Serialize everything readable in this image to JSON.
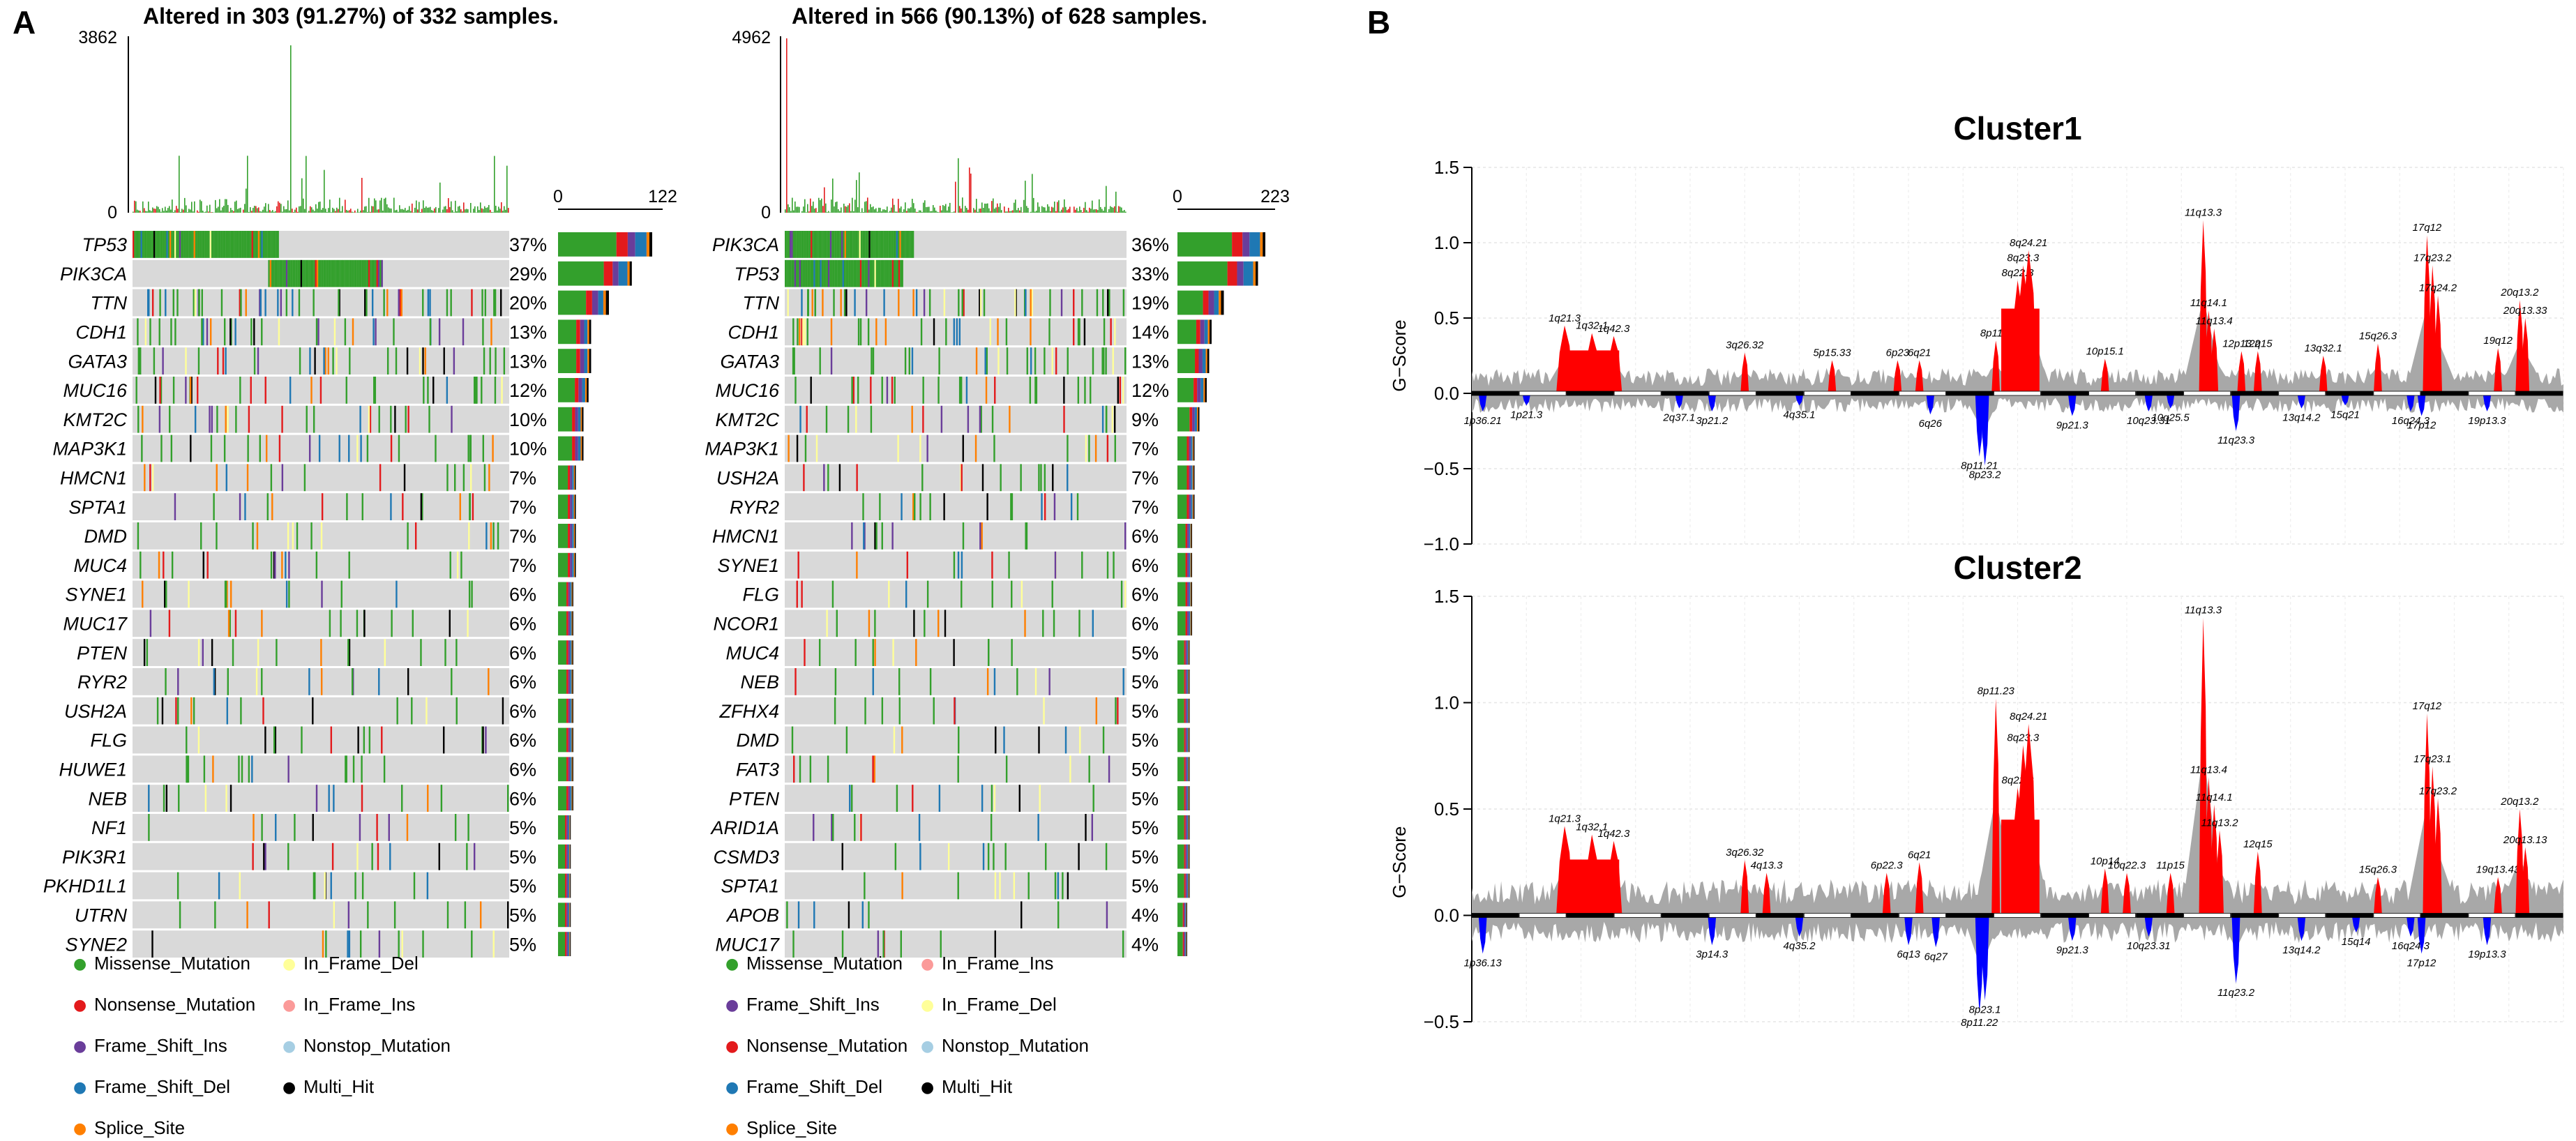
{
  "panels": {
    "a": "A",
    "b": "B"
  },
  "colors": {
    "Missense_Mutation": "#33a02c",
    "Nonsense_Mutation": "#e31a1c",
    "Frame_Shift_Ins": "#6a3d9a",
    "Frame_Shift_Del": "#1f78b4",
    "Splice_Site": "#ff7f00",
    "In_Frame_Del": "#ffff99",
    "In_Frame_Ins": "#fb9a99",
    "Nonstop_Mutation": "#a6cee3",
    "Multi_Hit": "#000000",
    "background": "#d9d9d9",
    "amp": "#ff0000",
    "del": "#0000ff",
    "gray": "#a8a8a8"
  },
  "chart_data": [
    {
      "type": "oncoplot",
      "title": "Altered in 303 (91.27%) of 332 samples.",
      "tmb_max_label": "3862",
      "tmb_zero_label": "0",
      "bar_axis_labels": [
        "0",
        "122"
      ],
      "bar_max": 122,
      "genes": [
        {
          "name": "TP53",
          "pct": "37%",
          "freq": 0.37
        },
        {
          "name": "PIK3CA",
          "pct": "29%",
          "freq": 0.29
        },
        {
          "name": "TTN",
          "pct": "20%",
          "freq": 0.2
        },
        {
          "name": "CDH1",
          "pct": "13%",
          "freq": 0.13
        },
        {
          "name": "GATA3",
          "pct": "13%",
          "freq": 0.13
        },
        {
          "name": "MUC16",
          "pct": "12%",
          "freq": 0.12
        },
        {
          "name": "KMT2C",
          "pct": "10%",
          "freq": 0.1
        },
        {
          "name": "MAP3K1",
          "pct": "10%",
          "freq": 0.1
        },
        {
          "name": "HMCN1",
          "pct": "7%",
          "freq": 0.07
        },
        {
          "name": "SPTA1",
          "pct": "7%",
          "freq": 0.07
        },
        {
          "name": "DMD",
          "pct": "7%",
          "freq": 0.07
        },
        {
          "name": "MUC4",
          "pct": "7%",
          "freq": 0.07
        },
        {
          "name": "SYNE1",
          "pct": "6%",
          "freq": 0.06
        },
        {
          "name": "MUC17",
          "pct": "6%",
          "freq": 0.06
        },
        {
          "name": "PTEN",
          "pct": "6%",
          "freq": 0.06
        },
        {
          "name": "RYR2",
          "pct": "6%",
          "freq": 0.06
        },
        {
          "name": "USH2A",
          "pct": "6%",
          "freq": 0.06
        },
        {
          "name": "FLG",
          "pct": "6%",
          "freq": 0.06
        },
        {
          "name": "HUWE1",
          "pct": "6%",
          "freq": 0.06
        },
        {
          "name": "NEB",
          "pct": "6%",
          "freq": 0.06
        },
        {
          "name": "NF1",
          "pct": "5%",
          "freq": 0.05
        },
        {
          "name": "PIK3R1",
          "pct": "5%",
          "freq": 0.05
        },
        {
          "name": "PKHD1L1",
          "pct": "5%",
          "freq": 0.05
        },
        {
          "name": "UTRN",
          "pct": "5%",
          "freq": 0.05
        },
        {
          "name": "SYNE2",
          "pct": "5%",
          "freq": 0.05
        }
      ]
    },
    {
      "type": "oncoplot",
      "title": "Altered in 566 (90.13%) of 628 samples.",
      "tmb_max_label": "4962",
      "tmb_zero_label": "0",
      "bar_axis_labels": [
        "0",
        "223"
      ],
      "bar_max": 223,
      "genes": [
        {
          "name": "PIK3CA",
          "pct": "36%",
          "freq": 0.36
        },
        {
          "name": "TP53",
          "pct": "33%",
          "freq": 0.33
        },
        {
          "name": "TTN",
          "pct": "19%",
          "freq": 0.19
        },
        {
          "name": "CDH1",
          "pct": "14%",
          "freq": 0.14
        },
        {
          "name": "GATA3",
          "pct": "13%",
          "freq": 0.13
        },
        {
          "name": "MUC16",
          "pct": "12%",
          "freq": 0.12
        },
        {
          "name": "KMT2C",
          "pct": "9%",
          "freq": 0.09
        },
        {
          "name": "MAP3K1",
          "pct": "7%",
          "freq": 0.07
        },
        {
          "name": "USH2A",
          "pct": "7%",
          "freq": 0.07
        },
        {
          "name": "RYR2",
          "pct": "7%",
          "freq": 0.07
        },
        {
          "name": "HMCN1",
          "pct": "6%",
          "freq": 0.06
        },
        {
          "name": "SYNE1",
          "pct": "6%",
          "freq": 0.06
        },
        {
          "name": "FLG",
          "pct": "6%",
          "freq": 0.06
        },
        {
          "name": "NCOR1",
          "pct": "6%",
          "freq": 0.06
        },
        {
          "name": "MUC4",
          "pct": "5%",
          "freq": 0.05
        },
        {
          "name": "NEB",
          "pct": "5%",
          "freq": 0.05
        },
        {
          "name": "ZFHX4",
          "pct": "5%",
          "freq": 0.05
        },
        {
          "name": "DMD",
          "pct": "5%",
          "freq": 0.05
        },
        {
          "name": "FAT3",
          "pct": "5%",
          "freq": 0.05
        },
        {
          "name": "PTEN",
          "pct": "5%",
          "freq": 0.05
        },
        {
          "name": "ARID1A",
          "pct": "5%",
          "freq": 0.05
        },
        {
          "name": "CSMD3",
          "pct": "5%",
          "freq": 0.05
        },
        {
          "name": "SPTA1",
          "pct": "5%",
          "freq": 0.05
        },
        {
          "name": "APOB",
          "pct": "4%",
          "freq": 0.04
        },
        {
          "name": "MUC17",
          "pct": "4%",
          "freq": 0.04
        }
      ]
    },
    {
      "type": "area",
      "title": "Cluster1",
      "ylabel": "G−Score",
      "ylim": [
        -1.0,
        1.5
      ],
      "yticks": [
        "1.5",
        "1.0",
        "0.5",
        "0.0",
        "−0.5",
        "−1.0"
      ],
      "peaks": [
        {
          "label": "1p36.21",
          "pos": 0.01,
          "score": -0.12
        },
        {
          "label": "1p21.3",
          "pos": 0.05,
          "score": -0.08
        },
        {
          "label": "1q21.3",
          "pos": 0.085,
          "score": 0.45
        },
        {
          "label": "1q32.1",
          "pos": 0.11,
          "score": 0.4
        },
        {
          "label": "1q42.3",
          "pos": 0.13,
          "score": 0.38
        },
        {
          "label": "2q37.1",
          "pos": 0.19,
          "score": -0.1
        },
        {
          "label": "3p21.2",
          "pos": 0.22,
          "score": -0.12
        },
        {
          "label": "3q26.32",
          "pos": 0.25,
          "score": 0.27
        },
        {
          "label": "4q35.1",
          "pos": 0.3,
          "score": -0.08
        },
        {
          "label": "5p15.33",
          "pos": 0.33,
          "score": 0.22
        },
        {
          "label": "6p23",
          "pos": 0.39,
          "score": 0.22
        },
        {
          "label": "6q21",
          "pos": 0.41,
          "score": 0.22
        },
        {
          "label": "6q26",
          "pos": 0.42,
          "score": -0.14
        },
        {
          "label": "8p11.21",
          "pos": 0.465,
          "score": -0.42
        },
        {
          "label": "8p23.2",
          "pos": 0.47,
          "score": -0.48
        },
        {
          "label": "8p11.2",
          "pos": 0.48,
          "score": 0.35
        },
        {
          "label": "8q22.3",
          "pos": 0.5,
          "score": 0.75
        },
        {
          "label": "8q23.3",
          "pos": 0.505,
          "score": 0.85
        },
        {
          "label": "8q24.21",
          "pos": 0.51,
          "score": 0.95
        },
        {
          "label": "9p21.3",
          "pos": 0.55,
          "score": -0.15
        },
        {
          "label": "10p15.1",
          "pos": 0.58,
          "score": 0.23
        },
        {
          "label": "10q23.31",
          "pos": 0.62,
          "score": -0.12
        },
        {
          "label": "10q25.5",
          "pos": 0.64,
          "score": -0.1
        },
        {
          "label": "11q13.3",
          "pos": 0.67,
          "score": 1.15
        },
        {
          "label": "11q14.1",
          "pos": 0.675,
          "score": 0.55
        },
        {
          "label": "11q13.4",
          "pos": 0.68,
          "score": 0.43
        },
        {
          "label": "11q23.3",
          "pos": 0.7,
          "score": -0.25
        },
        {
          "label": "12p13.2",
          "pos": 0.705,
          "score": 0.28
        },
        {
          "label": "12q15",
          "pos": 0.72,
          "score": 0.28
        },
        {
          "label": "13q14.2",
          "pos": 0.76,
          "score": -0.1
        },
        {
          "label": "13q32.1",
          "pos": 0.78,
          "score": 0.25
        },
        {
          "label": "15q21",
          "pos": 0.8,
          "score": -0.08
        },
        {
          "label": "15q26.3",
          "pos": 0.83,
          "score": 0.33
        },
        {
          "label": "16q24.3",
          "pos": 0.86,
          "score": -0.12
        },
        {
          "label": "17q12",
          "pos": 0.875,
          "score": 1.05
        },
        {
          "label": "17p12",
          "pos": 0.87,
          "score": -0.15
        },
        {
          "label": "17q23.2",
          "pos": 0.88,
          "score": 0.85
        },
        {
          "label": "17q24.2",
          "pos": 0.885,
          "score": 0.65
        },
        {
          "label": "19p13.3",
          "pos": 0.93,
          "score": -0.12
        },
        {
          "label": "19q12",
          "pos": 0.94,
          "score": 0.3
        },
        {
          "label": "20q13.2",
          "pos": 0.96,
          "score": 0.62
        },
        {
          "label": "20q13.33",
          "pos": 0.965,
          "score": 0.5
        }
      ]
    },
    {
      "type": "area",
      "title": "Cluster2",
      "ylabel": "G−Score",
      "ylim": [
        -0.5,
        1.5
      ],
      "yticks": [
        "1.5",
        "1.0",
        "0.5",
        "0.0",
        "−0.5"
      ],
      "peaks": [
        {
          "label": "1p36.13",
          "pos": 0.01,
          "score": -0.18
        },
        {
          "label": "1q21.3",
          "pos": 0.085,
          "score": 0.42
        },
        {
          "label": "1q32.1",
          "pos": 0.11,
          "score": 0.38
        },
        {
          "label": "1q42.3",
          "pos": 0.13,
          "score": 0.35
        },
        {
          "label": "3p14.3",
          "pos": 0.22,
          "score": -0.14
        },
        {
          "label": "3q26.32",
          "pos": 0.25,
          "score": 0.26
        },
        {
          "label": "4q13.3",
          "pos": 0.27,
          "score": 0.2
        },
        {
          "label": "4q35.2",
          "pos": 0.3,
          "score": -0.1
        },
        {
          "label": "6p22.3",
          "pos": 0.38,
          "score": 0.2
        },
        {
          "label": "6q21",
          "pos": 0.41,
          "score": 0.25
        },
        {
          "label": "6q13",
          "pos": 0.4,
          "score": -0.14
        },
        {
          "label": "6q27",
          "pos": 0.425,
          "score": -0.15
        },
        {
          "label": "8p11.22",
          "pos": 0.465,
          "score": -0.46
        },
        {
          "label": "8p23.1",
          "pos": 0.47,
          "score": -0.4
        },
        {
          "label": "8p11.23",
          "pos": 0.48,
          "score": 1.02
        },
        {
          "label": "8q22.2",
          "pos": 0.5,
          "score": 0.6
        },
        {
          "label": "8q23.3",
          "pos": 0.505,
          "score": 0.8
        },
        {
          "label": "8q24.21",
          "pos": 0.51,
          "score": 0.9
        },
        {
          "label": "9p21.3",
          "pos": 0.55,
          "score": -0.12
        },
        {
          "label": "10p14",
          "pos": 0.58,
          "score": 0.22
        },
        {
          "label": "10q22.3",
          "pos": 0.6,
          "score": 0.2
        },
        {
          "label": "10q23.31",
          "pos": 0.62,
          "score": -0.1
        },
        {
          "label": "11p15",
          "pos": 0.64,
          "score": 0.2
        },
        {
          "label": "11q13.3",
          "pos": 0.67,
          "score": 1.4
        },
        {
          "label": "11q13.4",
          "pos": 0.675,
          "score": 0.65
        },
        {
          "label": "11q14.1",
          "pos": 0.68,
          "score": 0.52
        },
        {
          "label": "11q13.2",
          "pos": 0.685,
          "score": 0.4
        },
        {
          "label": "11q23.2",
          "pos": 0.7,
          "score": -0.32
        },
        {
          "label": "12q15",
          "pos": 0.72,
          "score": 0.3
        },
        {
          "label": "13q14.2",
          "pos": 0.76,
          "score": -0.12
        },
        {
          "label": "15q14",
          "pos": 0.81,
          "score": -0.08
        },
        {
          "label": "15q26.3",
          "pos": 0.83,
          "score": 0.18
        },
        {
          "label": "16q24.3",
          "pos": 0.86,
          "score": -0.1
        },
        {
          "label": "17q12",
          "pos": 0.875,
          "score": 0.95
        },
        {
          "label": "17p12",
          "pos": 0.87,
          "score": -0.18
        },
        {
          "label": "17q23.1",
          "pos": 0.88,
          "score": 0.7
        },
        {
          "label": "17q23.2",
          "pos": 0.885,
          "score": 0.55
        },
        {
          "label": "19p13.3",
          "pos": 0.93,
          "score": -0.14
        },
        {
          "label": "19q13.43",
          "pos": 0.94,
          "score": 0.18
        },
        {
          "label": "20q13.2",
          "pos": 0.96,
          "score": 0.5
        },
        {
          "label": "20q13.13",
          "pos": 0.965,
          "score": 0.32
        }
      ]
    }
  ],
  "legend": {
    "left_col": [
      "Missense_Mutation",
      "Nonsense_Mutation",
      "Frame_Shift_Ins",
      "Frame_Shift_Del",
      "Splice_Site"
    ],
    "left_col2": [
      "In_Frame_Del",
      "In_Frame_Ins",
      "Nonstop_Mutation",
      "Multi_Hit"
    ],
    "right_col": [
      "Missense_Mutation",
      "Frame_Shift_Ins",
      "Nonsense_Mutation",
      "Frame_Shift_Del",
      "Splice_Site"
    ],
    "right_col2": [
      "In_Frame_Ins",
      "In_Frame_Del",
      "Nonstop_Mutation",
      "Multi_Hit"
    ]
  }
}
